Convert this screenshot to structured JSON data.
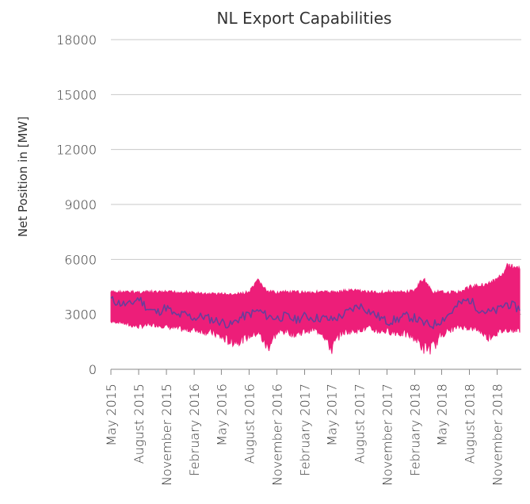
{
  "chart_data": {
    "type": "line",
    "title": "NL Export Capabilities",
    "ylabel": "Net Position in [MW]",
    "xlabel": "",
    "ylim": [
      0,
      18000
    ],
    "yticks": [
      "0",
      "3000",
      "6000",
      "9000",
      "12000",
      "15000",
      "18000"
    ],
    "xlim": [
      "2015-05-01",
      "2019-01-20"
    ],
    "xticks": [
      {
        "label": "May 2015",
        "date": "2015-05-01"
      },
      {
        "label": "August 2015",
        "date": "2015-08-01"
      },
      {
        "label": "November 2015",
        "date": "2015-11-01"
      },
      {
        "label": "February 2016",
        "date": "2016-02-01"
      },
      {
        "label": "May 2016",
        "date": "2016-05-01"
      },
      {
        "label": "August 2016",
        "date": "2016-08-01"
      },
      {
        "label": "November 2016",
        "date": "2016-11-01"
      },
      {
        "label": "February 2017",
        "date": "2017-02-01"
      },
      {
        "label": "May 2017",
        "date": "2017-05-01"
      },
      {
        "label": "August 2017",
        "date": "2017-08-01"
      },
      {
        "label": "November 2017",
        "date": "2017-11-01"
      },
      {
        "label": "February 2018",
        "date": "2018-02-01"
      },
      {
        "label": "May 2018",
        "date": "2018-05-01"
      },
      {
        "label": "August 2018",
        "date": "2018-08-01"
      },
      {
        "label": "November 2018",
        "date": "2018-11-01"
      }
    ],
    "grid": "horizontal",
    "colors": {
      "range": "#ED1E79",
      "average": "#6A3D9A",
      "grid": "#c8c8c8",
      "axis": "#888888"
    },
    "series": [
      {
        "role": "range-band",
        "x": [
          "2015-05-01",
          "2015-06-01",
          "2015-07-01",
          "2015-08-01",
          "2015-09-01",
          "2015-10-01",
          "2015-11-01",
          "2015-12-01",
          "2016-01-01",
          "2016-02-01",
          "2016-03-01",
          "2016-04-01",
          "2016-05-01",
          "2016-06-01",
          "2016-07-01",
          "2016-08-01",
          "2016-09-01",
          "2016-10-01",
          "2016-11-01",
          "2016-12-01",
          "2017-01-01",
          "2017-02-01",
          "2017-03-01",
          "2017-04-01",
          "2017-05-01",
          "2017-06-01",
          "2017-07-01",
          "2017-08-01",
          "2017-09-01",
          "2017-10-01",
          "2017-11-01",
          "2017-12-01",
          "2018-01-01",
          "2018-02-01",
          "2018-03-01",
          "2018-04-01",
          "2018-05-01",
          "2018-06-01",
          "2018-07-01",
          "2018-08-01",
          "2018-09-01",
          "2018-10-01",
          "2018-11-01",
          "2018-12-01",
          "2019-01-15"
        ],
        "high": [
          4300,
          4300,
          4300,
          4300,
          4300,
          4300,
          4300,
          4300,
          4300,
          4250,
          4200,
          4200,
          4200,
          4150,
          4200,
          4300,
          5000,
          4300,
          4300,
          4300,
          4300,
          4300,
          4300,
          4300,
          4300,
          4350,
          4400,
          4400,
          4300,
          4300,
          4300,
          4300,
          4300,
          4400,
          5100,
          4300,
          4300,
          4300,
          4300,
          4600,
          4700,
          4800,
          5000,
          5800,
          5800
        ],
        "low": [
          2500,
          2500,
          2300,
          2200,
          2300,
          2300,
          2200,
          2100,
          2000,
          2000,
          1900,
          1800,
          1500,
          1200,
          1300,
          1600,
          1800,
          800,
          1800,
          1900,
          1700,
          1900,
          2000,
          1800,
          700,
          1800,
          1900,
          2000,
          2100,
          1900,
          1900,
          1800,
          1700,
          1500,
          800,
          800,
          1700,
          2000,
          2200,
          2100,
          2000,
          1500,
          1800,
          2000,
          2000
        ]
      },
      {
        "role": "average",
        "x": [
          "2015-05-01",
          "2015-06-01",
          "2015-07-01",
          "2015-08-01",
          "2015-09-01",
          "2015-10-01",
          "2015-11-01",
          "2015-12-01",
          "2016-01-01",
          "2016-02-01",
          "2016-03-01",
          "2016-04-01",
          "2016-05-01",
          "2016-06-01",
          "2016-07-01",
          "2016-08-01",
          "2016-09-01",
          "2016-10-01",
          "2016-11-01",
          "2016-12-01",
          "2017-01-01",
          "2017-02-01",
          "2017-03-01",
          "2017-04-01",
          "2017-05-01",
          "2017-06-01",
          "2017-07-01",
          "2017-08-01",
          "2017-09-01",
          "2017-10-01",
          "2017-11-01",
          "2017-12-01",
          "2018-01-01",
          "2018-02-01",
          "2018-03-01",
          "2018-04-01",
          "2018-05-01",
          "2018-06-01",
          "2018-07-01",
          "2018-08-01",
          "2018-09-01",
          "2018-10-01",
          "2018-11-01",
          "2018-12-01",
          "2019-01-15"
        ],
        "values": [
          3800,
          3600,
          3500,
          3900,
          3300,
          3100,
          3400,
          2900,
          3000,
          2800,
          2900,
          2700,
          2600,
          2400,
          2800,
          3000,
          3200,
          2900,
          2800,
          2900,
          2700,
          2900,
          2800,
          2800,
          2700,
          2900,
          3200,
          3500,
          3200,
          2900,
          2600,
          2700,
          2900,
          2800,
          2500,
          2400,
          2700,
          3100,
          3600,
          3800,
          3300,
          3100,
          3200,
          3600,
          3300
        ]
      }
    ]
  }
}
